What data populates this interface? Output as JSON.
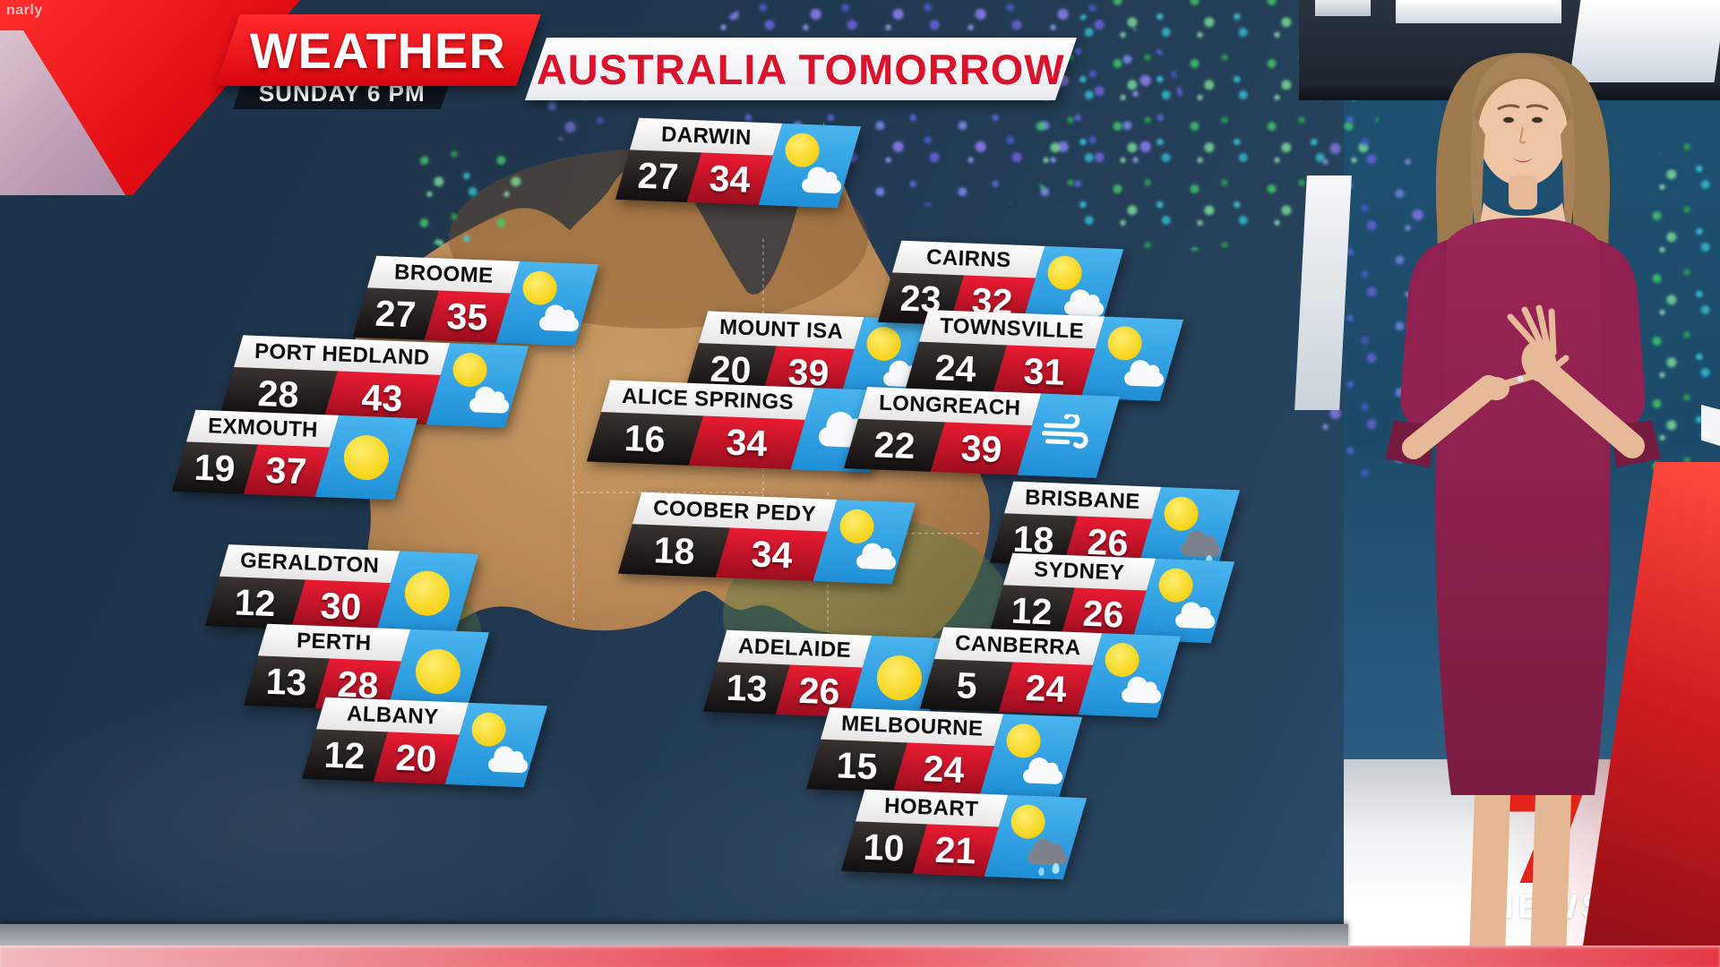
{
  "watermark": "narly",
  "header": {
    "title": "WEATHER",
    "datetime": "SUNDAY 6 PM",
    "banner": "AUSTRALIA TOMORROW"
  },
  "branding": {
    "channel": "7",
    "news_label": "NEWS"
  },
  "colors": {
    "accent_red": "#e2231a",
    "banner_red": "#e0121b",
    "banner_text_red": "#d8132b",
    "card_min_bg": "#1a1517",
    "card_max_bg": "#c60f27",
    "icon_panel_blue": "#2f9fe3",
    "ocean_navy": "#20374e",
    "land_tan": "#b98a58"
  },
  "cities": [
    {
      "name": "DARWIN",
      "min": "27",
      "max": "34",
      "icon": "partly-cloudy"
    },
    {
      "name": "BROOME",
      "min": "27",
      "max": "35",
      "icon": "partly-cloudy"
    },
    {
      "name": "PORT HEDLAND",
      "min": "28",
      "max": "43",
      "icon": "partly-cloudy"
    },
    {
      "name": "EXMOUTH",
      "min": "19",
      "max": "37",
      "icon": "sunny"
    },
    {
      "name": "GERALDTON",
      "min": "12",
      "max": "30",
      "icon": "sunny"
    },
    {
      "name": "PERTH",
      "min": "13",
      "max": "28",
      "icon": "sunny"
    },
    {
      "name": "ALBANY",
      "min": "12",
      "max": "20",
      "icon": "partly-cloudy"
    },
    {
      "name": "MOUNT ISA",
      "min": "20",
      "max": "39",
      "icon": "partly-cloudy"
    },
    {
      "name": "ALICE SPRINGS",
      "min": "16",
      "max": "34",
      "icon": "cloudy"
    },
    {
      "name": "COOBER PEDY",
      "min": "18",
      "max": "34",
      "icon": "partly-cloudy"
    },
    {
      "name": "CAIRNS",
      "min": "23",
      "max": "32",
      "icon": "partly-cloudy"
    },
    {
      "name": "TOWNSVILLE",
      "min": "24",
      "max": "31",
      "icon": "partly-cloudy"
    },
    {
      "name": "LONGREACH",
      "min": "22",
      "max": "39",
      "icon": "windy"
    },
    {
      "name": "BRISBANE",
      "min": "18",
      "max": "26",
      "icon": "sun-shower"
    },
    {
      "name": "SYDNEY",
      "min": "12",
      "max": "26",
      "icon": "partly-cloudy"
    },
    {
      "name": "ADELAIDE",
      "min": "13",
      "max": "26",
      "icon": "sunny"
    },
    {
      "name": "CANBERRA",
      "min": "5",
      "max": "24",
      "icon": "partly-cloudy"
    },
    {
      "name": "MELBOURNE",
      "min": "15",
      "max": "24",
      "icon": "partly-cloudy"
    },
    {
      "name": "HOBART",
      "min": "10",
      "max": "21",
      "icon": "sun-shower"
    }
  ]
}
